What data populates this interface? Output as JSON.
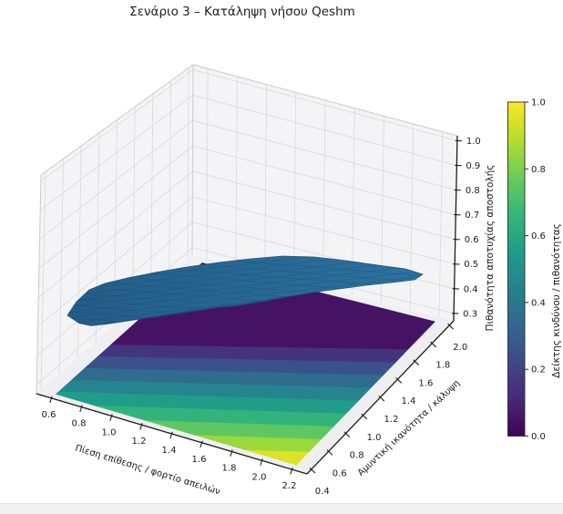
{
  "figure": {
    "title": "Σενάριο 3 – Κατάληψη νήσου Qeshm"
  },
  "axes": {
    "x": {
      "label": "Πίεση επίθεσης / φορτίο απειλών",
      "ticks": [
        "0.6",
        "0.8",
        "1.0",
        "1.2",
        "1.4",
        "1.6",
        "1.8",
        "2.0",
        "2.2"
      ]
    },
    "y": {
      "label": "Αμυντική ικανότητα / κάλυψη",
      "ticks": [
        "0.4",
        "0.6",
        "0.8",
        "1.0",
        "1.2",
        "1.4",
        "1.6",
        "1.8",
        "2.0"
      ]
    },
    "z": {
      "label": "Πιθανότητα αποτυχίας αποστολής",
      "ticks": [
        "0.3",
        "0.4",
        "0.5",
        "0.6",
        "0.7",
        "0.8",
        "0.9",
        "1.0"
      ]
    }
  },
  "colorbar": {
    "label": "Δείκτης κινδύνου / πιθανότητας",
    "ticks": [
      "0.0",
      "0.2",
      "0.4",
      "0.6",
      "0.8",
      "1.0"
    ]
  },
  "chart_data": {
    "type": "3d-surface",
    "title": "Σενάριο 3 – Κατάληψη νήσου Qeshm",
    "xlabel": "Πίεση επίθεσης / φορτίο απειλών",
    "ylabel": "Αμυντική ικανότητα / κάλυψη",
    "zlabel": "Πιθανότητα αποτυχίας αποστολής",
    "x_range": [
      0.6,
      2.2
    ],
    "y_range": [
      0.4,
      2.0
    ],
    "z_range": [
      0.3,
      1.0
    ],
    "grid": true,
    "series": [
      {
        "name": "Πιθανότητα αποτυχίας αποστολής",
        "type": "surface",
        "style": "solid steel-blue wavy sheet with fine mesh",
        "z_span_approx": [
          0.45,
          0.58
        ]
      },
      {
        "name": "Δείκτης κινδύνου",
        "type": "filled-contour",
        "plane": "floor",
        "colormap": "viridis",
        "levels": 10,
        "value_range": [
          0.0,
          1.0
        ],
        "value_coeffs": {
          "k0": 0.62,
          "kx": 0.3,
          "ky": -0.7
        },
        "value_model": "v = clamp(0.62 + 0.30*x - 0.70*y, 0, 1)"
      }
    ],
    "colorbar": {
      "label": "Δείκτης κινδύνου / πιθανότητας",
      "range": [
        0.0,
        1.0
      ],
      "ticks": [
        0.0,
        0.2,
        0.4,
        0.6,
        0.8,
        1.0
      ]
    }
  },
  "colors": {
    "viridis": [
      [
        0,
        "#440154"
      ],
      [
        0.111,
        "#482878"
      ],
      [
        0.222,
        "#3e4989"
      ],
      [
        0.333,
        "#31688e"
      ],
      [
        0.444,
        "#26828e"
      ],
      [
        0.556,
        "#1f9e89"
      ],
      [
        0.667,
        "#35b779"
      ],
      [
        0.778,
        "#6dcd59"
      ],
      [
        0.889,
        "#b4de2c"
      ],
      [
        1,
        "#fde725"
      ]
    ],
    "surface_fill_dark": "#235d88",
    "surface_fill_light": "#2d729f",
    "surface_edge": "#235a80",
    "surface_front_rim": "#1e5479",
    "mesh_line": "rgba(13,59,92,0.30)",
    "wall_pane": "#f4f4f6",
    "floor_pane": "#efeff1",
    "grid_line": "#d9d9dc",
    "box_edge": "#cbcbd0",
    "spine": "#1c1c1c",
    "tick_text": "#1a1a1a"
  }
}
